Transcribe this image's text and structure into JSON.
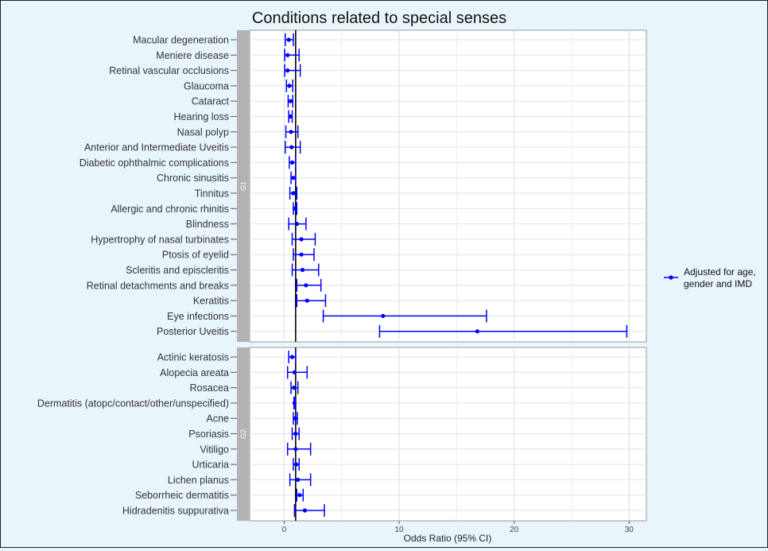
{
  "chart_data": {
    "type": "forest",
    "title": "Conditions related to special senses",
    "xlabel": "Odds Ratio (95% CI)",
    "xlim": [
      -3,
      31.5
    ],
    "xticks": [
      0,
      10,
      20,
      30
    ],
    "reference_line": 1,
    "grid": true,
    "legend": {
      "position": "right",
      "line1": "Adjusted for age,",
      "line2": "gender and IMD",
      "color": "#0000ff"
    },
    "series_color": "#0000ff",
    "panels": [
      {
        "label": "G1",
        "rows": [
          {
            "name": "Macular degeneration",
            "or": 0.4,
            "lo": 0.1,
            "hi": 0.8
          },
          {
            "name": "Meniere disease",
            "or": 0.3,
            "lo": 0.05,
            "hi": 1.3
          },
          {
            "name": "Retinal vascular occlusions",
            "or": 0.3,
            "lo": 0.05,
            "hi": 1.4
          },
          {
            "name": "Glaucoma",
            "or": 0.45,
            "lo": 0.2,
            "hi": 0.75
          },
          {
            "name": "Cataract",
            "or": 0.55,
            "lo": 0.35,
            "hi": 0.75
          },
          {
            "name": "Hearing loss",
            "or": 0.55,
            "lo": 0.4,
            "hi": 0.7
          },
          {
            "name": "Nasal polyp",
            "or": 0.6,
            "lo": 0.15,
            "hi": 1.2
          },
          {
            "name": "Anterior and Intermediate Uveitis",
            "or": 0.65,
            "lo": 0.1,
            "hi": 1.4
          },
          {
            "name": "Diabetic ophthalmic complications",
            "or": 0.7,
            "lo": 0.45,
            "hi": 1.0
          },
          {
            "name": "Chronic sinusitis",
            "or": 0.8,
            "lo": 0.6,
            "hi": 1.0
          },
          {
            "name": "Tinnitus",
            "or": 0.8,
            "lo": 0.5,
            "hi": 1.1
          },
          {
            "name": "Allergic and chronic rhinitis",
            "or": 0.95,
            "lo": 0.8,
            "hi": 1.1
          },
          {
            "name": "Blindness",
            "or": 1.1,
            "lo": 0.4,
            "hi": 1.9
          },
          {
            "name": "Hypertrophy of nasal turbinates",
            "or": 1.5,
            "lo": 0.7,
            "hi": 2.7
          },
          {
            "name": "Ptosis of eyelid",
            "or": 1.5,
            "lo": 0.8,
            "hi": 2.6
          },
          {
            "name": "Scleritis and episcleritis",
            "or": 1.6,
            "lo": 0.7,
            "hi": 3.0
          },
          {
            "name": "Retinal detachments and breaks",
            "or": 1.9,
            "lo": 1.1,
            "hi": 3.2
          },
          {
            "name": "Keratitis",
            "or": 2.0,
            "lo": 1.1,
            "hi": 3.6
          },
          {
            "name": "Eye infections",
            "or": 8.6,
            "lo": 3.4,
            "hi": 17.6
          },
          {
            "name": "Posterior Uveitis",
            "or": 16.8,
            "lo": 8.3,
            "hi": 29.8
          }
        ]
      },
      {
        "label": "G2",
        "rows": [
          {
            "name": "Actinic keratosis",
            "or": 0.7,
            "lo": 0.4,
            "hi": 1.0
          },
          {
            "name": "Alopecia areata",
            "or": 0.9,
            "lo": 0.3,
            "hi": 2.0
          },
          {
            "name": "Rosacea",
            "or": 0.85,
            "lo": 0.6,
            "hi": 1.2
          },
          {
            "name": "Dermatitis (atopc/contact/other/unspecified)",
            "or": 0.9,
            "lo": 0.85,
            "hi": 0.95
          },
          {
            "name": "Acne",
            "or": 0.95,
            "lo": 0.8,
            "hi": 1.15
          },
          {
            "name": "Psoriasis",
            "or": 1.0,
            "lo": 0.7,
            "hi": 1.3
          },
          {
            "name": "Vitiligo",
            "or": 1.0,
            "lo": 0.3,
            "hi": 2.3
          },
          {
            "name": "Urticaria",
            "or": 1.05,
            "lo": 0.8,
            "hi": 1.3
          },
          {
            "name": "Lichen planus",
            "or": 1.2,
            "lo": 0.5,
            "hi": 2.3
          },
          {
            "name": "Seborrheic dermatitis",
            "or": 1.35,
            "lo": 1.1,
            "hi": 1.65
          },
          {
            "name": "Hidradenitis suppurativa",
            "or": 1.8,
            "lo": 0.9,
            "hi": 3.5
          }
        ]
      }
    ]
  }
}
